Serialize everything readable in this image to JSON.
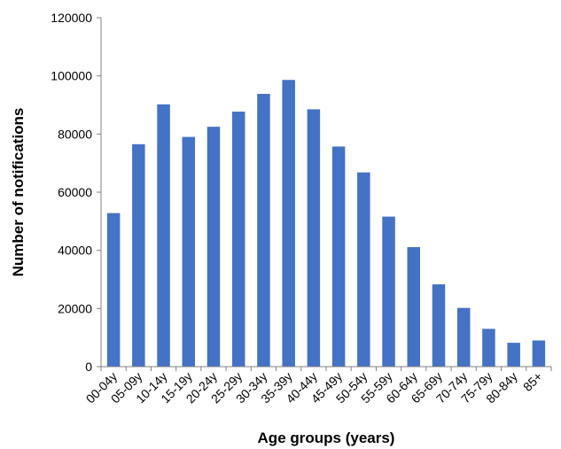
{
  "chart_data": {
    "type": "bar",
    "title": "",
    "xlabel": "Age groups (years)",
    "ylabel": "Number of notifications",
    "categories": [
      "00-04y",
      "05-09y",
      "10-14y",
      "15-19y",
      "20-24y",
      "25-29y",
      "30-34y",
      "35-39y",
      "40-44y",
      "45-49y",
      "50-54y",
      "55-59y",
      "60-64y",
      "65-69y",
      "70-74y",
      "75-79y",
      "80-84y",
      "85+"
    ],
    "values": [
      52800,
      76500,
      90200,
      79000,
      82500,
      87700,
      93800,
      98600,
      88500,
      75700,
      66800,
      51600,
      41100,
      28300,
      20200,
      13000,
      8200,
      9000
    ],
    "ylim": [
      0,
      120000
    ],
    "yticks": [
      "0",
      "20000",
      "40000",
      "60000",
      "80000",
      "100000",
      "120000"
    ],
    "grid": false,
    "legend": "none",
    "bar_color": "#4472C4",
    "axis_color": "#808080"
  }
}
